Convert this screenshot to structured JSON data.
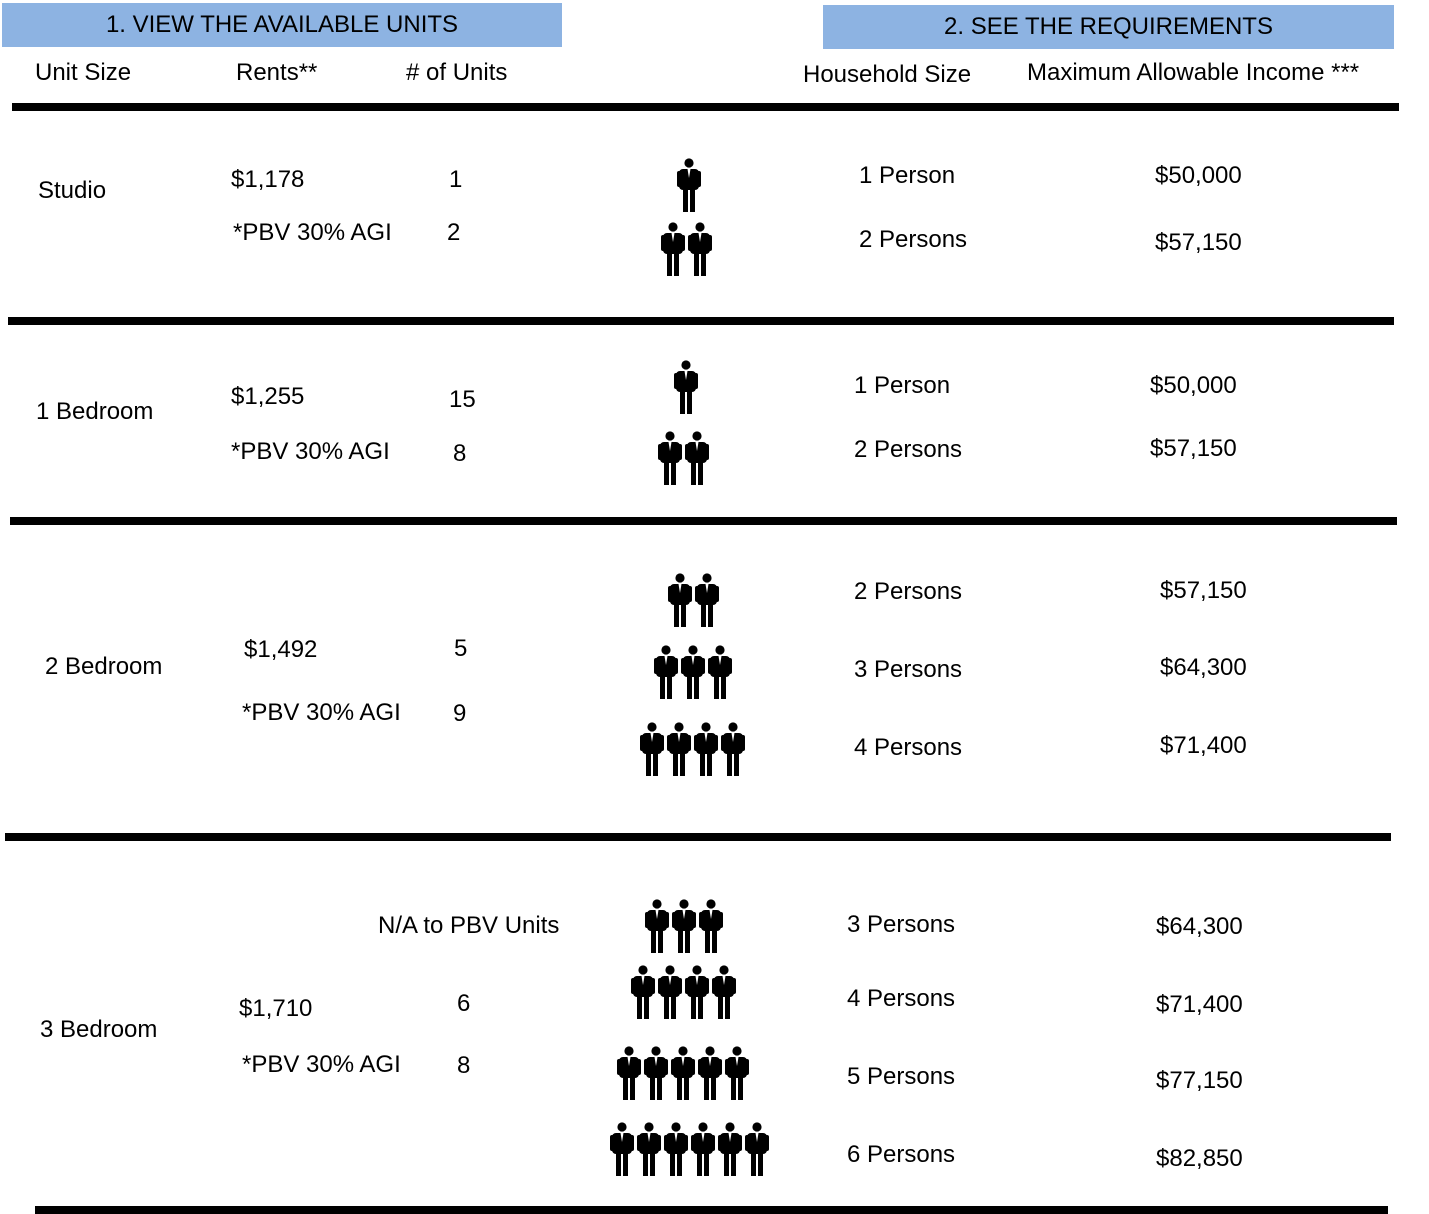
{
  "banners": {
    "left": "1.  VIEW THE AVAILABLE UNITS",
    "right": "2.  SEE THE REQUIREMENTS"
  },
  "headers": {
    "unit_size": "Unit Size",
    "rents": "Rents**",
    "num_units": "# of Units",
    "household_size": "Household Size",
    "max_income": "Maximum Allowable Income ***"
  },
  "rows": [
    {
      "unit": "Studio",
      "rent": "$1,178",
      "rent_note": "*PBV 30% AGI",
      "units": "1",
      "units_pbv": "2",
      "households": [
        {
          "people": 1,
          "label": "1 Person",
          "income": "$50,000"
        },
        {
          "people": 2,
          "label": "2 Persons",
          "income": "$57,150"
        }
      ]
    },
    {
      "unit": "1 Bedroom",
      "rent": "$1,255",
      "rent_note": "*PBV 30% AGI",
      "units": "15",
      "units_pbv": "8",
      "households": [
        {
          "people": 1,
          "label": "1 Person",
          "income": "$50,000"
        },
        {
          "people": 2,
          "label": "2 Persons",
          "income": "$57,150"
        }
      ]
    },
    {
      "unit": "2 Bedroom",
      "rent": "$1,492",
      "rent_note": "*PBV 30% AGI",
      "units": "5",
      "units_pbv": "9",
      "households": [
        {
          "people": 2,
          "label": "2 Persons",
          "income": "$57,150"
        },
        {
          "people": 3,
          "label": "3 Persons",
          "income": "$64,300"
        },
        {
          "people": 4,
          "label": "4 Persons",
          "income": "$71,400"
        }
      ]
    },
    {
      "unit": "3 Bedroom",
      "rent": "$1,710",
      "rent_note": "*PBV 30% AGI",
      "units": "6",
      "units_pbv": "8",
      "na_note": "N/A to PBV Units",
      "households": [
        {
          "people": 3,
          "label": "3 Persons",
          "income": "$64,300"
        },
        {
          "people": 4,
          "label": "4 Persons",
          "income": "$71,400"
        },
        {
          "people": 5,
          "label": "5 Persons",
          "income": "$77,150"
        },
        {
          "people": 6,
          "label": "6 Persons",
          "income": "$82,850"
        }
      ]
    }
  ],
  "icons": {
    "person": "person-icon"
  }
}
